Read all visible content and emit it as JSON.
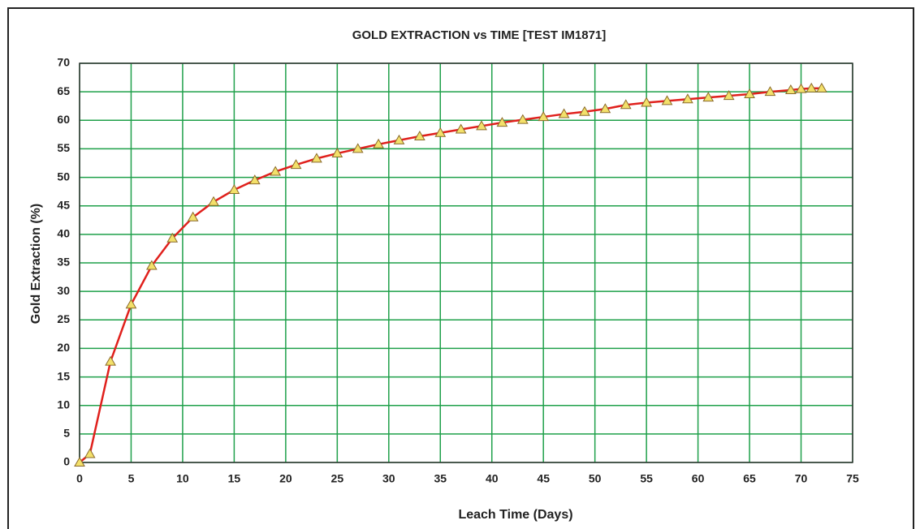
{
  "chart_data": {
    "type": "line",
    "title": "GOLD EXTRACTION vs TIME [TEST IM1871]",
    "x_label": "Leach Time (Days)",
    "y_label": "Gold Extraction (%)",
    "x": [
      0,
      1,
      3,
      5,
      7,
      9,
      11,
      13,
      15,
      17,
      19,
      21,
      23,
      25,
      27,
      29,
      31,
      33,
      35,
      37,
      39,
      41,
      43,
      45,
      47,
      49,
      51,
      53,
      55,
      57,
      59,
      61,
      63,
      65,
      67,
      69,
      70,
      71,
      72
    ],
    "series": [
      {
        "color": "#e0201c",
        "marker": "triangle",
        "marker_color": "#f3e06a",
        "values": [
          0,
          1.5,
          17.7,
          27.7,
          34.5,
          39.3,
          43,
          45.7,
          47.8,
          49.5,
          51,
          52.2,
          53.3,
          54.2,
          55,
          55.8,
          56.5,
          57.2,
          57.8,
          58.4,
          59,
          59.6,
          60.1,
          60.6,
          61.1,
          61.5,
          62,
          62.7,
          63.1,
          63.4,
          63.7,
          64,
          64.3,
          64.6,
          65,
          65.3,
          65.5,
          65.6,
          65.6
        ]
      }
    ],
    "xlim": [
      0,
      75
    ],
    "ylim": [
      0,
      70
    ],
    "xticks": [
      0,
      5,
      10,
      15,
      20,
      25,
      30,
      35,
      40,
      45,
      50,
      55,
      60,
      65,
      70,
      75
    ],
    "yticks": [
      0,
      5,
      10,
      15,
      20,
      25,
      30,
      35,
      40,
      45,
      50,
      55,
      60,
      65,
      70
    ],
    "grid": true,
    "grid_color": "#1fa04a"
  }
}
